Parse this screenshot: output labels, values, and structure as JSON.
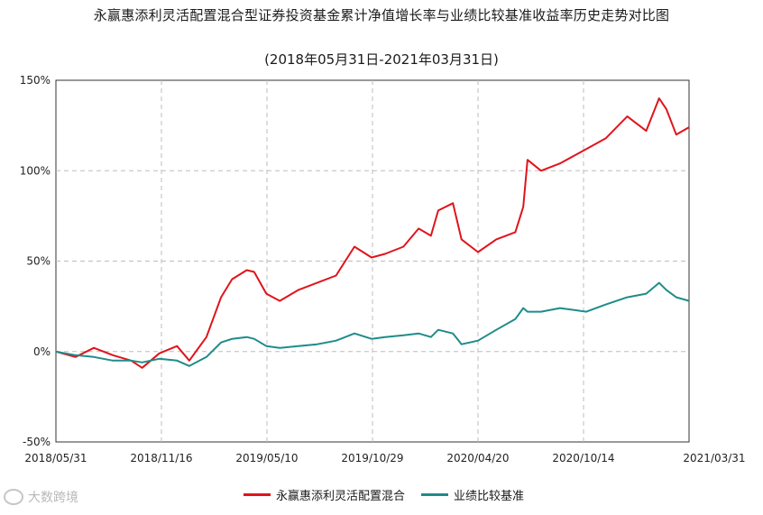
{
  "title": "永赢惠添利灵活配置混合型证券投资基金累计净值增长率与业绩比较基准收益率历史走势对比图",
  "subtitle": "(2018年05月31日-2021年03月31日)",
  "watermark": "大数跨境",
  "colors": {
    "fund": "#e0141b",
    "benchmark": "#1e8c8a",
    "grid": "#bdbdbd"
  },
  "chart_data": {
    "type": "line",
    "title": "永赢惠添利灵活配置混合型证券投资基金累计净值增长率与业绩比较基准收益率历史走势对比图",
    "subtitle": "(2018年05月31日-2021年03月31日)",
    "x_tick_labels": [
      "2018/05/31",
      "2018/11/16",
      "2019/05/10",
      "2019/10/29",
      "2020/04/20",
      "2020/10/14",
      "2021/03/31"
    ],
    "x_range": [
      "2018-05-31",
      "2021-03-31"
    ],
    "y_tick_labels": [
      "150%",
      "100%",
      "50%",
      "0%",
      "-50%"
    ],
    "y_ticks": [
      150,
      100,
      50,
      0,
      -50
    ],
    "ylim": [
      -50,
      150
    ],
    "grid": true,
    "legend_position": "bottom",
    "x": [
      "2018-05-31",
      "2018-07-02",
      "2018-08-01",
      "2018-09-01",
      "2018-10-01",
      "2018-10-19",
      "2018-11-16",
      "2018-12-15",
      "2019-01-04",
      "2019-02-01",
      "2019-02-25",
      "2019-03-15",
      "2019-04-08",
      "2019-04-20",
      "2019-05-10",
      "2019-06-01",
      "2019-07-01",
      "2019-08-01",
      "2019-09-01",
      "2019-10-01",
      "2019-10-29",
      "2019-11-20",
      "2019-12-20",
      "2020-01-14",
      "2020-02-03",
      "2020-02-15",
      "2020-03-10",
      "2020-03-24",
      "2020-04-20",
      "2020-05-20",
      "2020-06-20",
      "2020-07-03",
      "2020-07-10",
      "2020-08-01",
      "2020-09-01",
      "2020-10-14",
      "2020-11-15",
      "2020-12-20",
      "2021-01-20",
      "2021-02-10",
      "2021-02-22",
      "2021-03-10",
      "2021-03-31"
    ],
    "series": [
      {
        "name": "永赢惠添利灵活配置混合",
        "values": [
          0,
          -3,
          2,
          -2,
          -5,
          -9,
          -1,
          3,
          -5,
          8,
          30,
          40,
          45,
          44,
          32,
          28,
          34,
          38,
          42,
          58,
          52,
          54,
          58,
          68,
          64,
          78,
          82,
          62,
          55,
          62,
          66,
          80,
          106,
          100,
          104,
          112,
          118,
          130,
          122,
          140,
          134,
          120,
          124
        ]
      },
      {
        "name": "业绩比较基准",
        "values": [
          0,
          -2,
          -3,
          -5,
          -5,
          -6,
          -4,
          -5,
          -8,
          -3,
          5,
          7,
          8,
          7,
          3,
          2,
          3,
          4,
          6,
          10,
          7,
          8,
          9,
          10,
          8,
          12,
          10,
          4,
          6,
          12,
          18,
          24,
          22,
          22,
          24,
          22,
          26,
          30,
          32,
          38,
          34,
          30,
          28
        ]
      }
    ]
  }
}
